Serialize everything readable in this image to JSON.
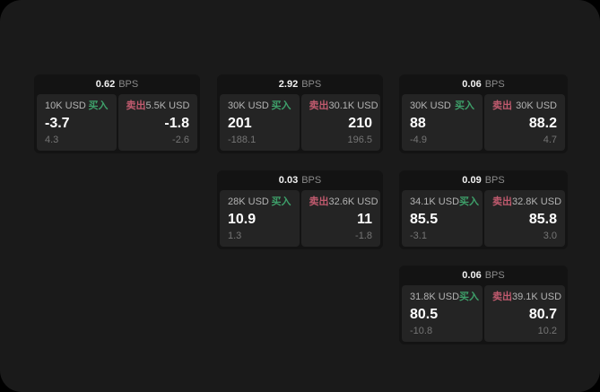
{
  "labels": {
    "buy": "买入",
    "sell": "卖出",
    "bps_unit": "BPS"
  },
  "colors": {
    "page_background": "#1a1a1a",
    "card_background": "#131313",
    "panel_background": "#242424",
    "buy_green": "#3ea06a",
    "sell_red": "#c05a6e"
  },
  "cards": [
    {
      "bps": "0.62",
      "buy": {
        "amount": "10K USD",
        "price": "-3.7",
        "delta": "4.3"
      },
      "sell": {
        "amount": "5.5K USD",
        "price": "-1.8",
        "delta": "-2.6"
      }
    },
    {
      "bps": "2.92",
      "buy": {
        "amount": "30K USD",
        "price": "201",
        "delta": "-188.1"
      },
      "sell": {
        "amount": "30.1K USD",
        "price": "210",
        "delta": "196.5"
      }
    },
    {
      "bps": "0.06",
      "buy": {
        "amount": "30K USD",
        "price": "88",
        "delta": "-4.9"
      },
      "sell": {
        "amount": "30K USD",
        "price": "88.2",
        "delta": "4.7"
      }
    },
    {
      "bps": "0.03",
      "buy": {
        "amount": "28K USD",
        "price": "10.9",
        "delta": "1.3"
      },
      "sell": {
        "amount": "32.6K USD",
        "price": "11",
        "delta": "-1.8"
      }
    },
    {
      "bps": "0.09",
      "buy": {
        "amount": "34.1K USD",
        "price": "85.5",
        "delta": "-3.1"
      },
      "sell": {
        "amount": "32.8K USD",
        "price": "85.8",
        "delta": "3.0"
      }
    },
    {
      "bps": "0.06",
      "buy": {
        "amount": "31.8K USD",
        "price": "80.5",
        "delta": "-10.8"
      },
      "sell": {
        "amount": "39.1K USD",
        "price": "80.7",
        "delta": "10.2"
      }
    }
  ]
}
